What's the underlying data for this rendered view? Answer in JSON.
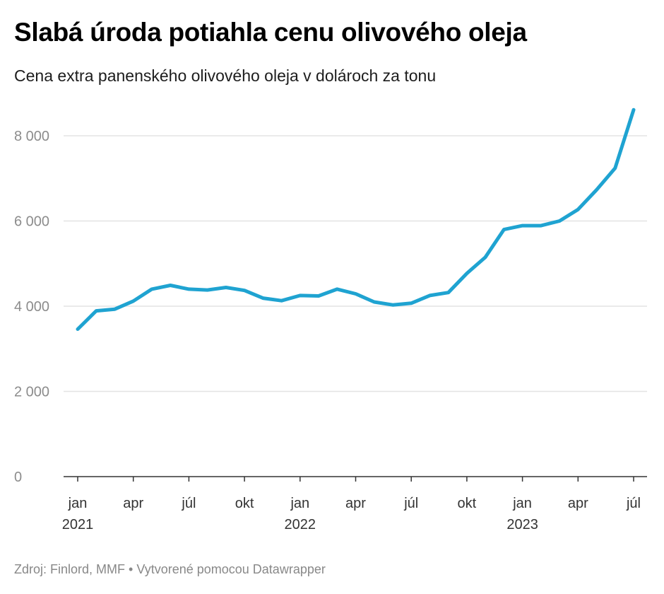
{
  "title": "Slabá úroda potiahla cenu olivového oleja",
  "subtitle": "Cena extra panenského olivového oleja v dolároch za tonu",
  "footer": {
    "source": "Zdroj: Finlord, MMF",
    "separator": "•",
    "credit": "Vytvorené pomocou Datawrapper"
  },
  "colors": {
    "line": "#1fa3d1",
    "grid": "#e3e3e3",
    "axis": "#333333"
  },
  "chart_data": {
    "type": "line",
    "title": "Slabá úroda potiahla cenu olivového oleja",
    "subtitle": "Cena extra panenského olivového oleja v dolároch za tonu",
    "xlabel": "",
    "ylabel": "",
    "ylim": [
      0,
      8800
    ],
    "yticks": [
      0,
      2000,
      4000,
      6000,
      8000
    ],
    "ytick_labels": [
      "0",
      "2 000",
      "4 000",
      "6 000",
      "8 000"
    ],
    "grid": true,
    "legend": "none",
    "x_ticks": [
      {
        "date": "2021-01",
        "month": "jan",
        "year": "2021"
      },
      {
        "date": "2021-04",
        "month": "apr",
        "year": ""
      },
      {
        "date": "2021-07",
        "month": "júl",
        "year": ""
      },
      {
        "date": "2021-10",
        "month": "okt",
        "year": ""
      },
      {
        "date": "2022-01",
        "month": "jan",
        "year": "2022"
      },
      {
        "date": "2022-04",
        "month": "apr",
        "year": ""
      },
      {
        "date": "2022-07",
        "month": "júl",
        "year": ""
      },
      {
        "date": "2022-10",
        "month": "okt",
        "year": ""
      },
      {
        "date": "2023-01",
        "month": "jan",
        "year": "2023"
      },
      {
        "date": "2023-04",
        "month": "apr",
        "year": ""
      },
      {
        "date": "2023-07",
        "month": "júl",
        "year": ""
      }
    ],
    "series": [
      {
        "values": [
          {
            "x": "2021-01",
            "y": 3460
          },
          {
            "x": "2021-02",
            "y": 3890
          },
          {
            "x": "2021-03",
            "y": 3930
          },
          {
            "x": "2021-04",
            "y": 4120
          },
          {
            "x": "2021-05",
            "y": 4400
          },
          {
            "x": "2021-06",
            "y": 4490
          },
          {
            "x": "2021-07",
            "y": 4400
          },
          {
            "x": "2021-08",
            "y": 4380
          },
          {
            "x": "2021-09",
            "y": 4440
          },
          {
            "x": "2021-10",
            "y": 4370
          },
          {
            "x": "2021-11",
            "y": 4190
          },
          {
            "x": "2021-12",
            "y": 4130
          },
          {
            "x": "2022-01",
            "y": 4250
          },
          {
            "x": "2022-02",
            "y": 4240
          },
          {
            "x": "2022-03",
            "y": 4400
          },
          {
            "x": "2022-04",
            "y": 4290
          },
          {
            "x": "2022-05",
            "y": 4100
          },
          {
            "x": "2022-06",
            "y": 4030
          },
          {
            "x": "2022-07",
            "y": 4070
          },
          {
            "x": "2022-08",
            "y": 4250
          },
          {
            "x": "2022-09",
            "y": 4320
          },
          {
            "x": "2022-10",
            "y": 4770
          },
          {
            "x": "2022-11",
            "y": 5150
          },
          {
            "x": "2022-12",
            "y": 5800
          },
          {
            "x": "2023-01",
            "y": 5890
          },
          {
            "x": "2023-02",
            "y": 5890
          },
          {
            "x": "2023-03",
            "y": 6000
          },
          {
            "x": "2023-04",
            "y": 6270
          },
          {
            "x": "2023-05",
            "y": 6730
          },
          {
            "x": "2023-06",
            "y": 7240
          },
          {
            "x": "2023-07",
            "y": 8610
          }
        ]
      }
    ]
  }
}
